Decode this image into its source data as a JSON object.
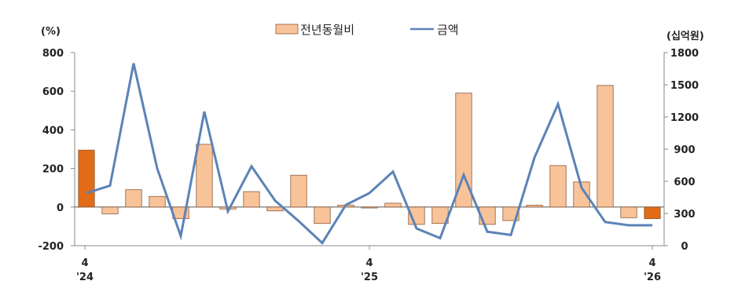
{
  "chart_data": {
    "type": "bar+line",
    "legend": {
      "placement": "top-center",
      "items": [
        {
          "label": "전년동월비",
          "kind": "bar"
        },
        {
          "label": "금액",
          "kind": "line"
        }
      ]
    },
    "left_axis": {
      "unit": "(%)",
      "ylim": [
        -200,
        800
      ],
      "ticks": [
        "-200",
        "0",
        "200",
        "400",
        "600",
        "800"
      ]
    },
    "right_axis": {
      "unit": "(십억원)",
      "ylim": [
        0,
        1800
      ],
      "ticks": [
        "0",
        "300",
        "600",
        "900",
        "1200",
        "1500",
        "1800"
      ]
    },
    "x_labels": [
      {
        "index": 0,
        "month": "4",
        "year": "'24"
      },
      {
        "index": 12,
        "month": "4",
        "year": "'25"
      },
      {
        "index": 24,
        "month": "4",
        "year": "'26"
      }
    ],
    "series": [
      {
        "name": "전년동월비",
        "type": "bar",
        "axis": "left",
        "values": [
          295,
          -35,
          90,
          55,
          -60,
          325,
          -10,
          80,
          -20,
          165,
          -85,
          10,
          -5,
          20,
          -90,
          -85,
          590,
          -90,
          -70,
          10,
          215,
          130,
          630,
          -55,
          -60
        ]
      },
      {
        "name": "금액",
        "type": "line",
        "axis": "right",
        "values": [
          490,
          560,
          1700,
          720,
          90,
          1250,
          320,
          740,
          420,
          230,
          25,
          380,
          490,
          690,
          160,
          70,
          660,
          130,
          100,
          820,
          1320,
          540,
          220,
          190,
          190
        ]
      }
    ],
    "highlighted_bars": [
      0,
      24
    ],
    "colors": {
      "bar": "#f9c39a",
      "bar_highlight": "#e26b16",
      "bar_edge": "#8a5a3a",
      "line": "#5b83b6",
      "axis": "#888888"
    }
  }
}
